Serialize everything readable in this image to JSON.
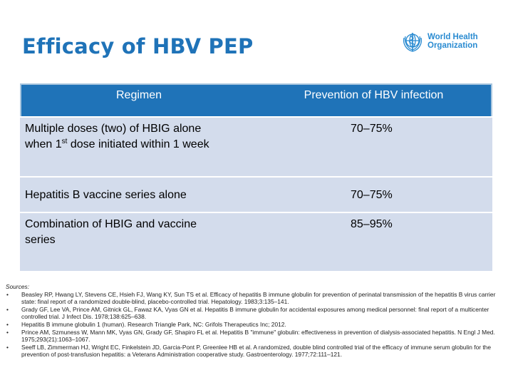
{
  "title": "Efficacy of HBV PEP",
  "logo": {
    "line1": "World Health",
    "line2": "Organization",
    "color": "#2a8bd1"
  },
  "table": {
    "headers": [
      "Regimen",
      "Prevention of HBV infection"
    ],
    "rows": [
      {
        "regimen_part1": "Multiple doses (two) of HBIG alone",
        "regimen_part2a": "when 1",
        "regimen_sup": "st",
        "regimen_part2b": " dose initiated within 1 week",
        "prevention": "70–75%"
      },
      {
        "regimen": "Hepatitis B vaccine series alone",
        "prevention": "70–75%"
      },
      {
        "regimen": "Combination of HBIG and vaccine series",
        "prevention": "85–95%"
      }
    ],
    "header_color": "#1f73b8",
    "row_color": "#d3dcec"
  },
  "sources": {
    "label": "Sources:",
    "items": [
      "Beasley RP, Hwang LY, Stevens CE, Hsieh FJ, Wang KY, Sun TS et al. Efficacy of hepatitis B immune globulin for prevention of perinatal transmission of the hepatitis B virus carrier state: final report of a randomized double-blind, placebo-controlled trial. Hepatology. 1983;3:135–141.",
      "Grady GF, Lee VA, Prince AM, Gitnick GL, Fawaz KA, Vyas GN et al. Hepatitis B immune globulin for accidental exposures among medical personnel: final report of a multicenter controlled trial. J Infect Dis. 1978;138:625–638.",
      "Hepatitis B immune globulin 1 (human). Research Triangle Park, NC: Grifols Therapeutics Inc; 2012.",
      "Prince AM, Szmuness W, Mann MK, Vyas GN, Grady GF, Shapiro FL et al. Hepatitis B \"immune\" globulin: effectiveness in prevention of dialysis-associated hepatitis. N Engl J Med. 1975;293(21):1063–1067.",
      "Seeff LB, Zimmerman HJ, Wright EC, Finkelstein JD, Garcia-Pont P, Greenlee HB et al. A randomized, double blind controlled trial of the efficacy of immune serum globulin for the prevention of post-transfusion hepatitis: a Veterans Administration cooperative study. Gastroenterology. 1977;72:111–121."
    ]
  }
}
